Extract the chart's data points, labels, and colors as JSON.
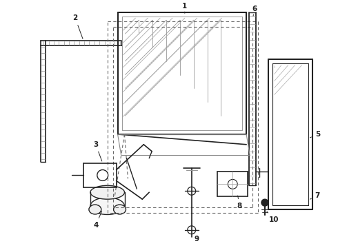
{
  "bg_color": "#ffffff",
  "lc": "#222222",
  "lc_gray": "#666666",
  "lc_light": "#999999",
  "fig_width": 4.9,
  "fig_height": 3.6,
  "dpi": 100
}
